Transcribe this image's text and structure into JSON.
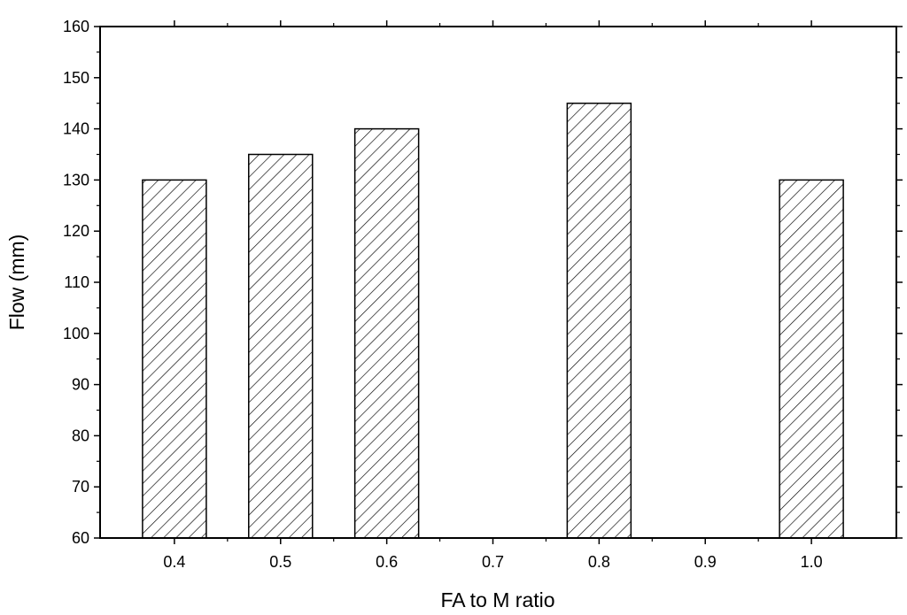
{
  "chart_data": {
    "type": "bar",
    "title": "",
    "xlabel": "FA to M ratio",
    "ylabel": "Flow (mm)",
    "x_ticks": [
      "0.4",
      "0.5",
      "0.6",
      "0.7",
      "0.8",
      "0.9",
      "1.0"
    ],
    "categories": [
      "0.4",
      "0.5",
      "0.6",
      "0.8",
      "1.0"
    ],
    "values": [
      130,
      135,
      140,
      145,
      130
    ],
    "xlim": [
      0.33,
      1.08
    ],
    "ylim": [
      60,
      160
    ],
    "y_ticks": [
      60,
      70,
      80,
      90,
      100,
      110,
      120,
      130,
      140,
      150,
      160
    ],
    "bar_fill": "diagonal-hatch",
    "grid": false,
    "legend": "none",
    "colors": {
      "bar_edge": "#000000",
      "hatch": "#000000",
      "background": "#ffffff"
    }
  }
}
